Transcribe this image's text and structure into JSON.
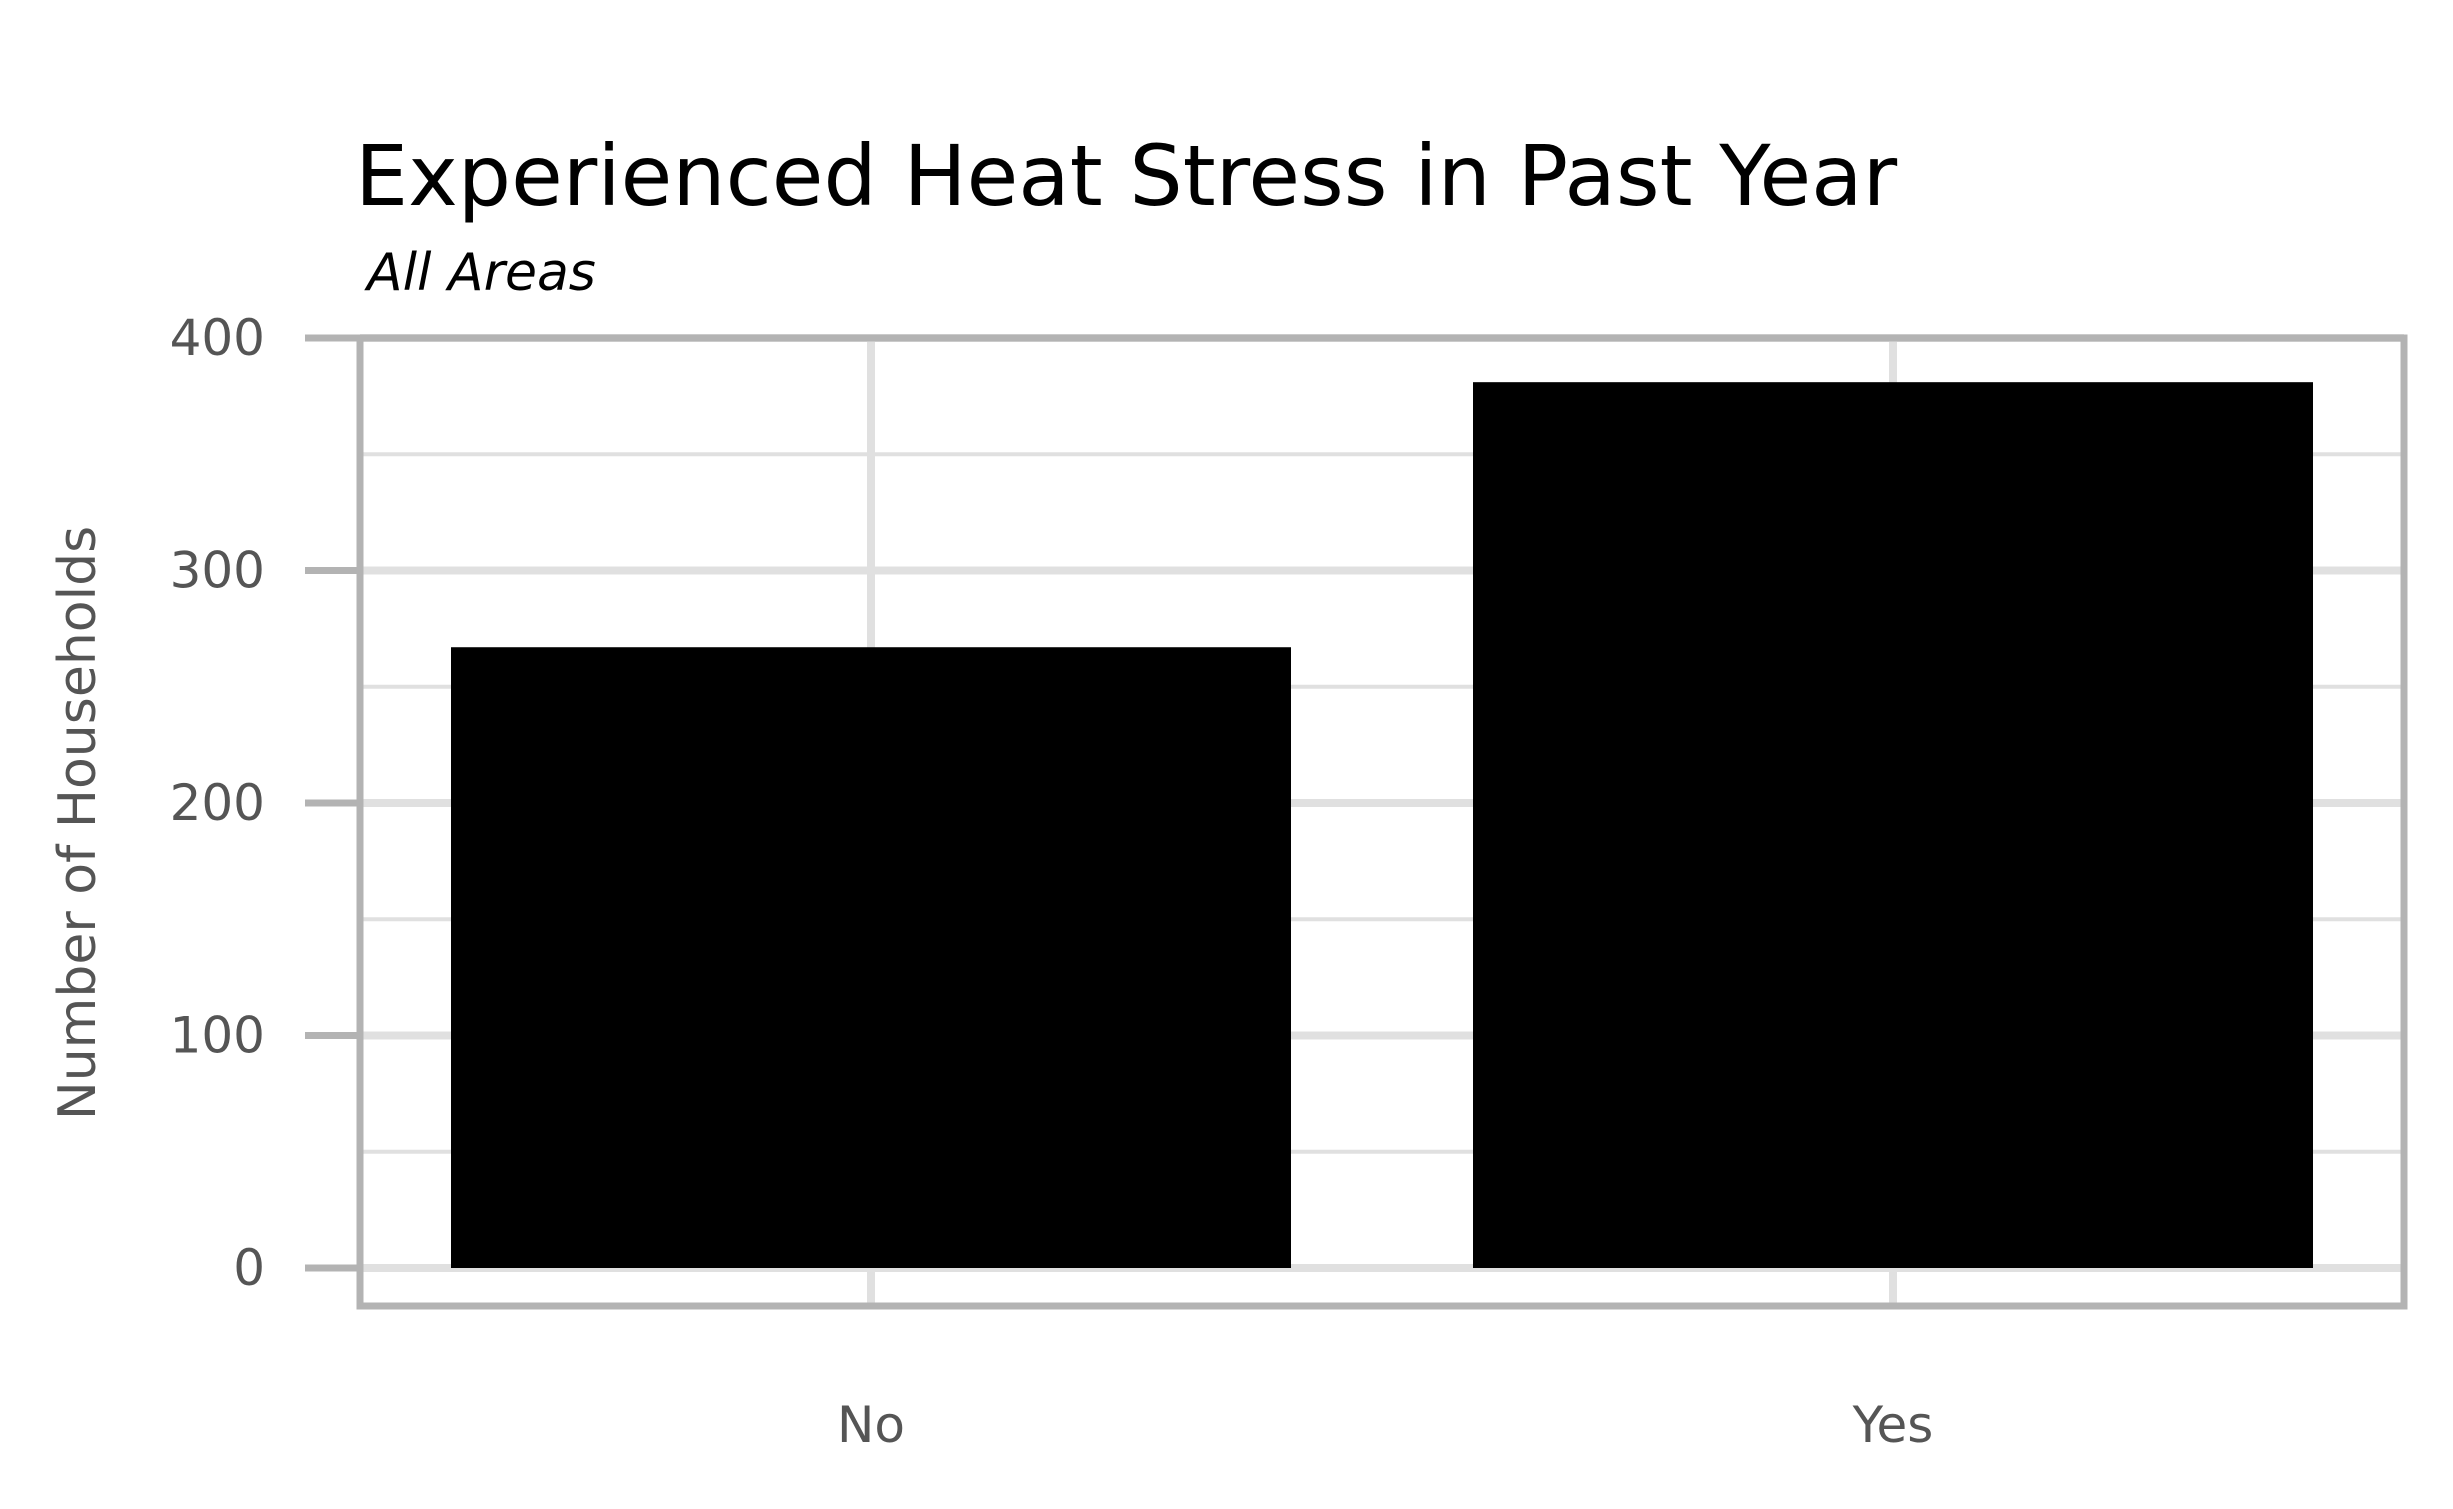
{
  "chart_data": {
    "type": "bar",
    "title": "Experienced Heat Stress in Past Year",
    "subtitle": "All Areas",
    "xlabel": "",
    "ylabel": "Number of Households",
    "categories": [
      "No",
      "Yes"
    ],
    "values": [
      267,
      381
    ],
    "ylim": [
      0,
      400
    ],
    "yticks": [
      "0",
      "100",
      "200",
      "300",
      "400"
    ],
    "grid": true,
    "bar_color": "#000000",
    "grid_color": "#e0e0e0",
    "frame_color": "#b3b3b3"
  }
}
